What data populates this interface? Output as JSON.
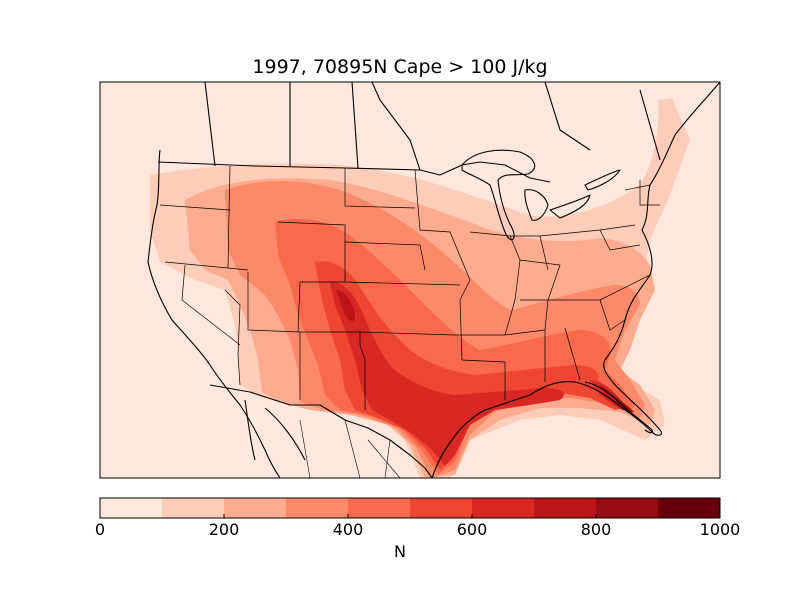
{
  "title": "1997, 70895N Cape > 100 J/kg",
  "colorbar": {
    "label": "N",
    "ticks": [
      "0",
      "200",
      "400",
      "600",
      "800",
      "1000"
    ],
    "min": 0,
    "max": 1000,
    "step": 100,
    "colors": [
      "#fee8dd",
      "#fdcdb9",
      "#fcab8f",
      "#fc8a6a",
      "#f9694c",
      "#ef4533",
      "#d92723",
      "#bb151a",
      "#970c13",
      "#67000d"
    ]
  }
}
